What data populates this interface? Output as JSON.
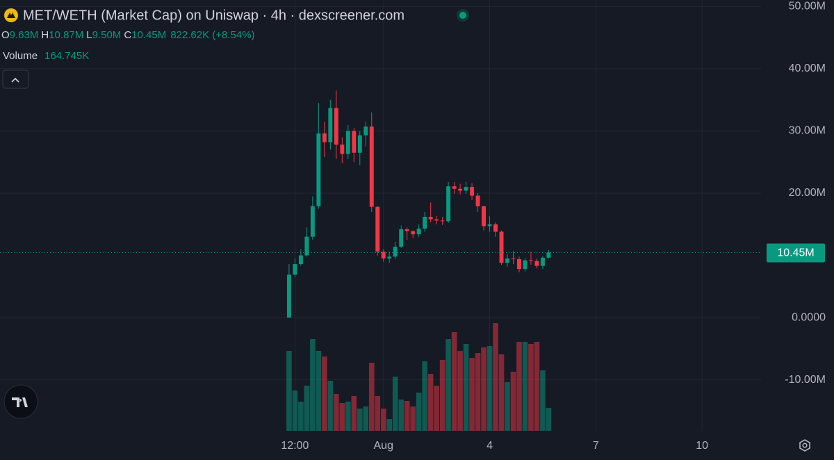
{
  "chart_data": {
    "type": "candlestick",
    "title": "MET/WETH (Market Cap) on Uniswap · 4h · dexscreener.com",
    "ohlc_legend": {
      "o_label": "O",
      "o_value": "9.63M",
      "h_label": "H",
      "h_value": "10.87M",
      "l_label": "L",
      "l_value": "9.50M",
      "c_label": "C",
      "c_value": "10.45M",
      "change": "822.62K (+8.54%)"
    },
    "volume_legend": {
      "label": "Volume",
      "value": "164.745K"
    },
    "last_price_label": "10.45M",
    "up_color": "#089981",
    "down_color": "#f23645",
    "grid": true,
    "x": [
      0,
      1,
      2,
      3,
      4,
      5,
      6,
      7,
      8,
      9,
      10,
      11,
      12,
      13,
      14,
      15,
      16,
      17,
      18,
      19,
      20,
      21,
      22,
      23,
      24,
      25,
      26,
      27,
      28,
      29,
      30,
      31,
      32,
      33,
      34,
      35,
      36,
      37,
      38,
      39,
      40,
      41,
      42,
      43,
      44
    ],
    "open": [
      0,
      6.9,
      8.6,
      10.0,
      13.0,
      17.9,
      29.6,
      28.2,
      33.7,
      27.8,
      26.3,
      30.0,
      26.5,
      29.3,
      30.7,
      17.8,
      10.6,
      9.5,
      9.8,
      11.4,
      14.2,
      13.9,
      13.4,
      14.3,
      16.2,
      15.8,
      15.6,
      15.5,
      21.1,
      20.7,
      20.4,
      21.0,
      19.6,
      17.9,
      14.7,
      15.0,
      13.8,
      8.8,
      9.5,
      9.4,
      7.8,
      9.2,
      9.1,
      8.3,
      9.63
    ],
    "high": [
      8.6,
      9.5,
      11,
      14.5,
      19.5,
      34.5,
      31.5,
      35,
      36.5,
      29,
      31,
      30.5,
      30,
      31.5,
      33,
      17.9,
      11,
      10.6,
      12.2,
      14.8,
      14.5,
      14,
      15,
      17,
      18.5,
      16.3,
      16.2,
      21.8,
      21.8,
      21.5,
      21.8,
      21.6,
      20,
      18,
      16.3,
      15.3,
      14,
      10.2,
      10.7,
      9.8,
      9.6,
      10.6,
      9.5,
      9.9,
      10.87
    ],
    "low": [
      0,
      6.5,
      8.3,
      9.8,
      12.5,
      17.5,
      25.8,
      27,
      25.5,
      24.8,
      25.5,
      25,
      24.5,
      27.5,
      17,
      10,
      9.0,
      8.8,
      9.4,
      11.2,
      12.5,
      12.8,
      13,
      13.8,
      15.3,
      15,
      14.9,
      15.2,
      19.9,
      19.8,
      19.9,
      18.9,
      17,
      14,
      13.8,
      13,
      8.5,
      8.2,
      8.6,
      7.3,
      7.4,
      8.5,
      7.9,
      7.8,
      9.5
    ],
    "close": [
      6.9,
      8.6,
      10.0,
      13.0,
      17.9,
      29.6,
      28.2,
      33.7,
      27.8,
      26.3,
      30.0,
      26.5,
      29.3,
      30.7,
      17.8,
      10.6,
      9.5,
      9.8,
      11.4,
      14.2,
      13.9,
      13.4,
      14.3,
      16.2,
      15.8,
      15.6,
      15.5,
      21.1,
      20.7,
      20.4,
      21.0,
      19.6,
      17.9,
      14.7,
      15.0,
      13.8,
      8.8,
      9.5,
      9.4,
      7.8,
      9.2,
      9.1,
      8.3,
      9.63,
      10.45
    ],
    "volume": [
      575,
      290,
      210,
      325,
      660,
      575,
      535,
      360,
      265,
      200,
      210,
      250,
      160,
      175,
      490,
      250,
      160,
      85,
      390,
      225,
      215,
      175,
      275,
      500,
      410,
      325,
      510,
      660,
      710,
      575,
      625,
      525,
      560,
      600,
      610,
      775,
      550,
      350,
      425,
      640,
      640,
      625,
      640,
      435,
      164.745
    ],
    "xlim": [
      -49,
      80
    ],
    "xticks": [
      {
        "value": 1,
        "label": "12:00"
      },
      {
        "value": 16,
        "label": "Aug"
      },
      {
        "value": 34,
        "label": "4"
      },
      {
        "value": 52,
        "label": "7"
      },
      {
        "value": 70,
        "label": "10"
      }
    ],
    "ylim": [
      -18.2,
      51.05
    ],
    "yticks": [
      {
        "value": 50,
        "label": "50.00M"
      },
      {
        "value": 40,
        "label": "40.00M"
      },
      {
        "value": 30,
        "label": "30.00M"
      },
      {
        "value": 20,
        "label": "20.00M"
      },
      {
        "value": 0,
        "label": "0.0000"
      },
      {
        "value": -10,
        "label": "-10.00M"
      }
    ]
  }
}
